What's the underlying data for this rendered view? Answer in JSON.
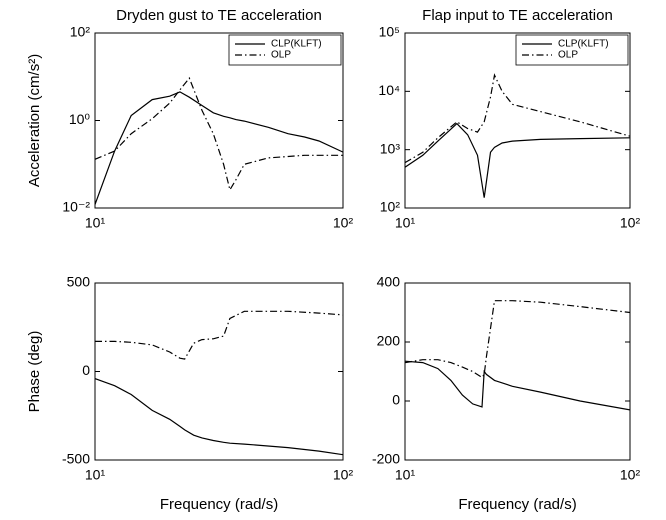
{
  "chart_data": [
    {
      "type": "line",
      "title": "Dryden gust to TE acceleration",
      "ylabel": "Acceleration (cm/s²)",
      "xscale": "log",
      "yscale": "log",
      "legend": "upper right",
      "x": [
        10,
        12,
        14,
        17,
        20,
        22,
        24,
        27,
        30,
        33,
        35,
        37,
        40,
        50,
        60,
        70,
        80,
        100
      ],
      "series": [
        {
          "name": "CLP(KLFT)",
          "color": "#000000",
          "linestyle": "solid",
          "values": [
            0.012,
            0.2,
            1.3,
            3,
            3.6,
            4.5,
            3.4,
            2.2,
            1.5,
            1.25,
            1.15,
            1.05,
            0.97,
            0.7,
            0.5,
            0.42,
            0.34,
            0.19
          ]
        },
        {
          "name": "OLP",
          "color": "#000000",
          "linestyle": "dashdot",
          "values": [
            0.13,
            0.2,
            0.5,
            1.1,
            2.5,
            5,
            9.3,
            1.7,
            0.5,
            0.1,
            0.026,
            0.044,
            0.1,
            0.14,
            0.15,
            0.16,
            0.16,
            0.16
          ]
        }
      ],
      "xlim": [
        10,
        100
      ],
      "ylim": [
        0.01,
        100
      ],
      "xticks": [
        {
          "value": 10,
          "label": "10¹"
        },
        {
          "value": 100,
          "label": "10²"
        }
      ],
      "yticks": [
        {
          "value": 0.01,
          "label": "10⁻²"
        },
        {
          "value": 1,
          "label": "10⁰"
        },
        {
          "value": 100,
          "label": "10²"
        }
      ]
    },
    {
      "type": "line",
      "title": "Flap input to TE acceleration",
      "xscale": "log",
      "yscale": "log",
      "legend": "upper right",
      "x": [
        10,
        12,
        14,
        17,
        19,
        21,
        22.5,
        24,
        25,
        27,
        30,
        40,
        60,
        100
      ],
      "series": [
        {
          "name": "CLP(KLFT)",
          "color": "#000000",
          "linestyle": "solid",
          "values": [
            500,
            800,
            1400,
            2800,
            1800,
            800,
            150,
            900,
            1100,
            1300,
            1400,
            1500,
            1550,
            1600
          ]
        },
        {
          "name": "OLP",
          "color": "#000000",
          "linestyle": "dashdot",
          "values": [
            600,
            900,
            1600,
            3000,
            2300,
            2000,
            3000,
            8000,
            19000,
            10000,
            6000,
            4500,
            3000,
            1700
          ]
        }
      ],
      "xlim": [
        10,
        100
      ],
      "ylim": [
        100,
        100000
      ],
      "xticks": [
        {
          "value": 10,
          "label": "10¹"
        },
        {
          "value": 100,
          "label": "10²"
        }
      ],
      "yticks": [
        {
          "value": 100,
          "label": "10²"
        },
        {
          "value": 1000,
          "label": "10³"
        },
        {
          "value": 10000,
          "label": "10⁴"
        },
        {
          "value": 100000,
          "label": "10⁵"
        }
      ]
    },
    {
      "type": "line",
      "ylabel": "Phase (deg)",
      "xlabel": "Frequency (rad/s)",
      "xscale": "log",
      "yscale": "linear",
      "x": [
        10,
        12,
        14,
        17,
        20,
        22,
        23,
        25,
        27,
        30,
        33,
        35,
        40,
        60,
        80,
        100
      ],
      "series": [
        {
          "name": "CLP(KLFT)",
          "color": "#000000",
          "linestyle": "solid",
          "values": [
            -40,
            -80,
            -130,
            -220,
            -270,
            -310,
            -330,
            -360,
            -375,
            -390,
            -400,
            -405,
            -410,
            -430,
            -450,
            -470
          ]
        },
        {
          "name": "OLP",
          "color": "#000000",
          "linestyle": "dashdot",
          "values": [
            170,
            170,
            165,
            150,
            110,
            75,
            70,
            160,
            180,
            185,
            200,
            300,
            340,
            340,
            330,
            320
          ]
        }
      ],
      "xlim": [
        10,
        100
      ],
      "ylim": [
        -500,
        500
      ],
      "xticks": [
        {
          "value": 10,
          "label": "10¹"
        },
        {
          "value": 100,
          "label": "10²"
        }
      ],
      "yticks": [
        -500,
        0,
        500
      ]
    },
    {
      "type": "line",
      "xlabel": "Frequency (rad/s)",
      "xscale": "log",
      "yscale": "linear",
      "x": [
        10,
        12,
        14,
        16,
        18,
        20,
        22,
        22.5,
        23,
        25,
        30,
        40,
        60,
        100
      ],
      "series": [
        {
          "name": "CLP(KLFT)",
          "color": "#000000",
          "linestyle": "solid",
          "values": [
            135,
            130,
            110,
            70,
            20,
            -10,
            -20,
            100,
            90,
            70,
            50,
            30,
            0,
            -30
          ]
        },
        {
          "name": "OLP",
          "color": "#000000",
          "linestyle": "dashdot",
          "values": [
            130,
            140,
            140,
            130,
            115,
            100,
            80,
            90,
            150,
            340,
            340,
            335,
            320,
            300
          ]
        }
      ],
      "xlim": [
        10,
        100
      ],
      "ylim": [
        -200,
        400
      ],
      "xticks": [
        {
          "value": 10,
          "label": "10¹"
        },
        {
          "value": 100,
          "label": "10²"
        }
      ],
      "yticks": [
        -200,
        0,
        200,
        400
      ]
    }
  ]
}
